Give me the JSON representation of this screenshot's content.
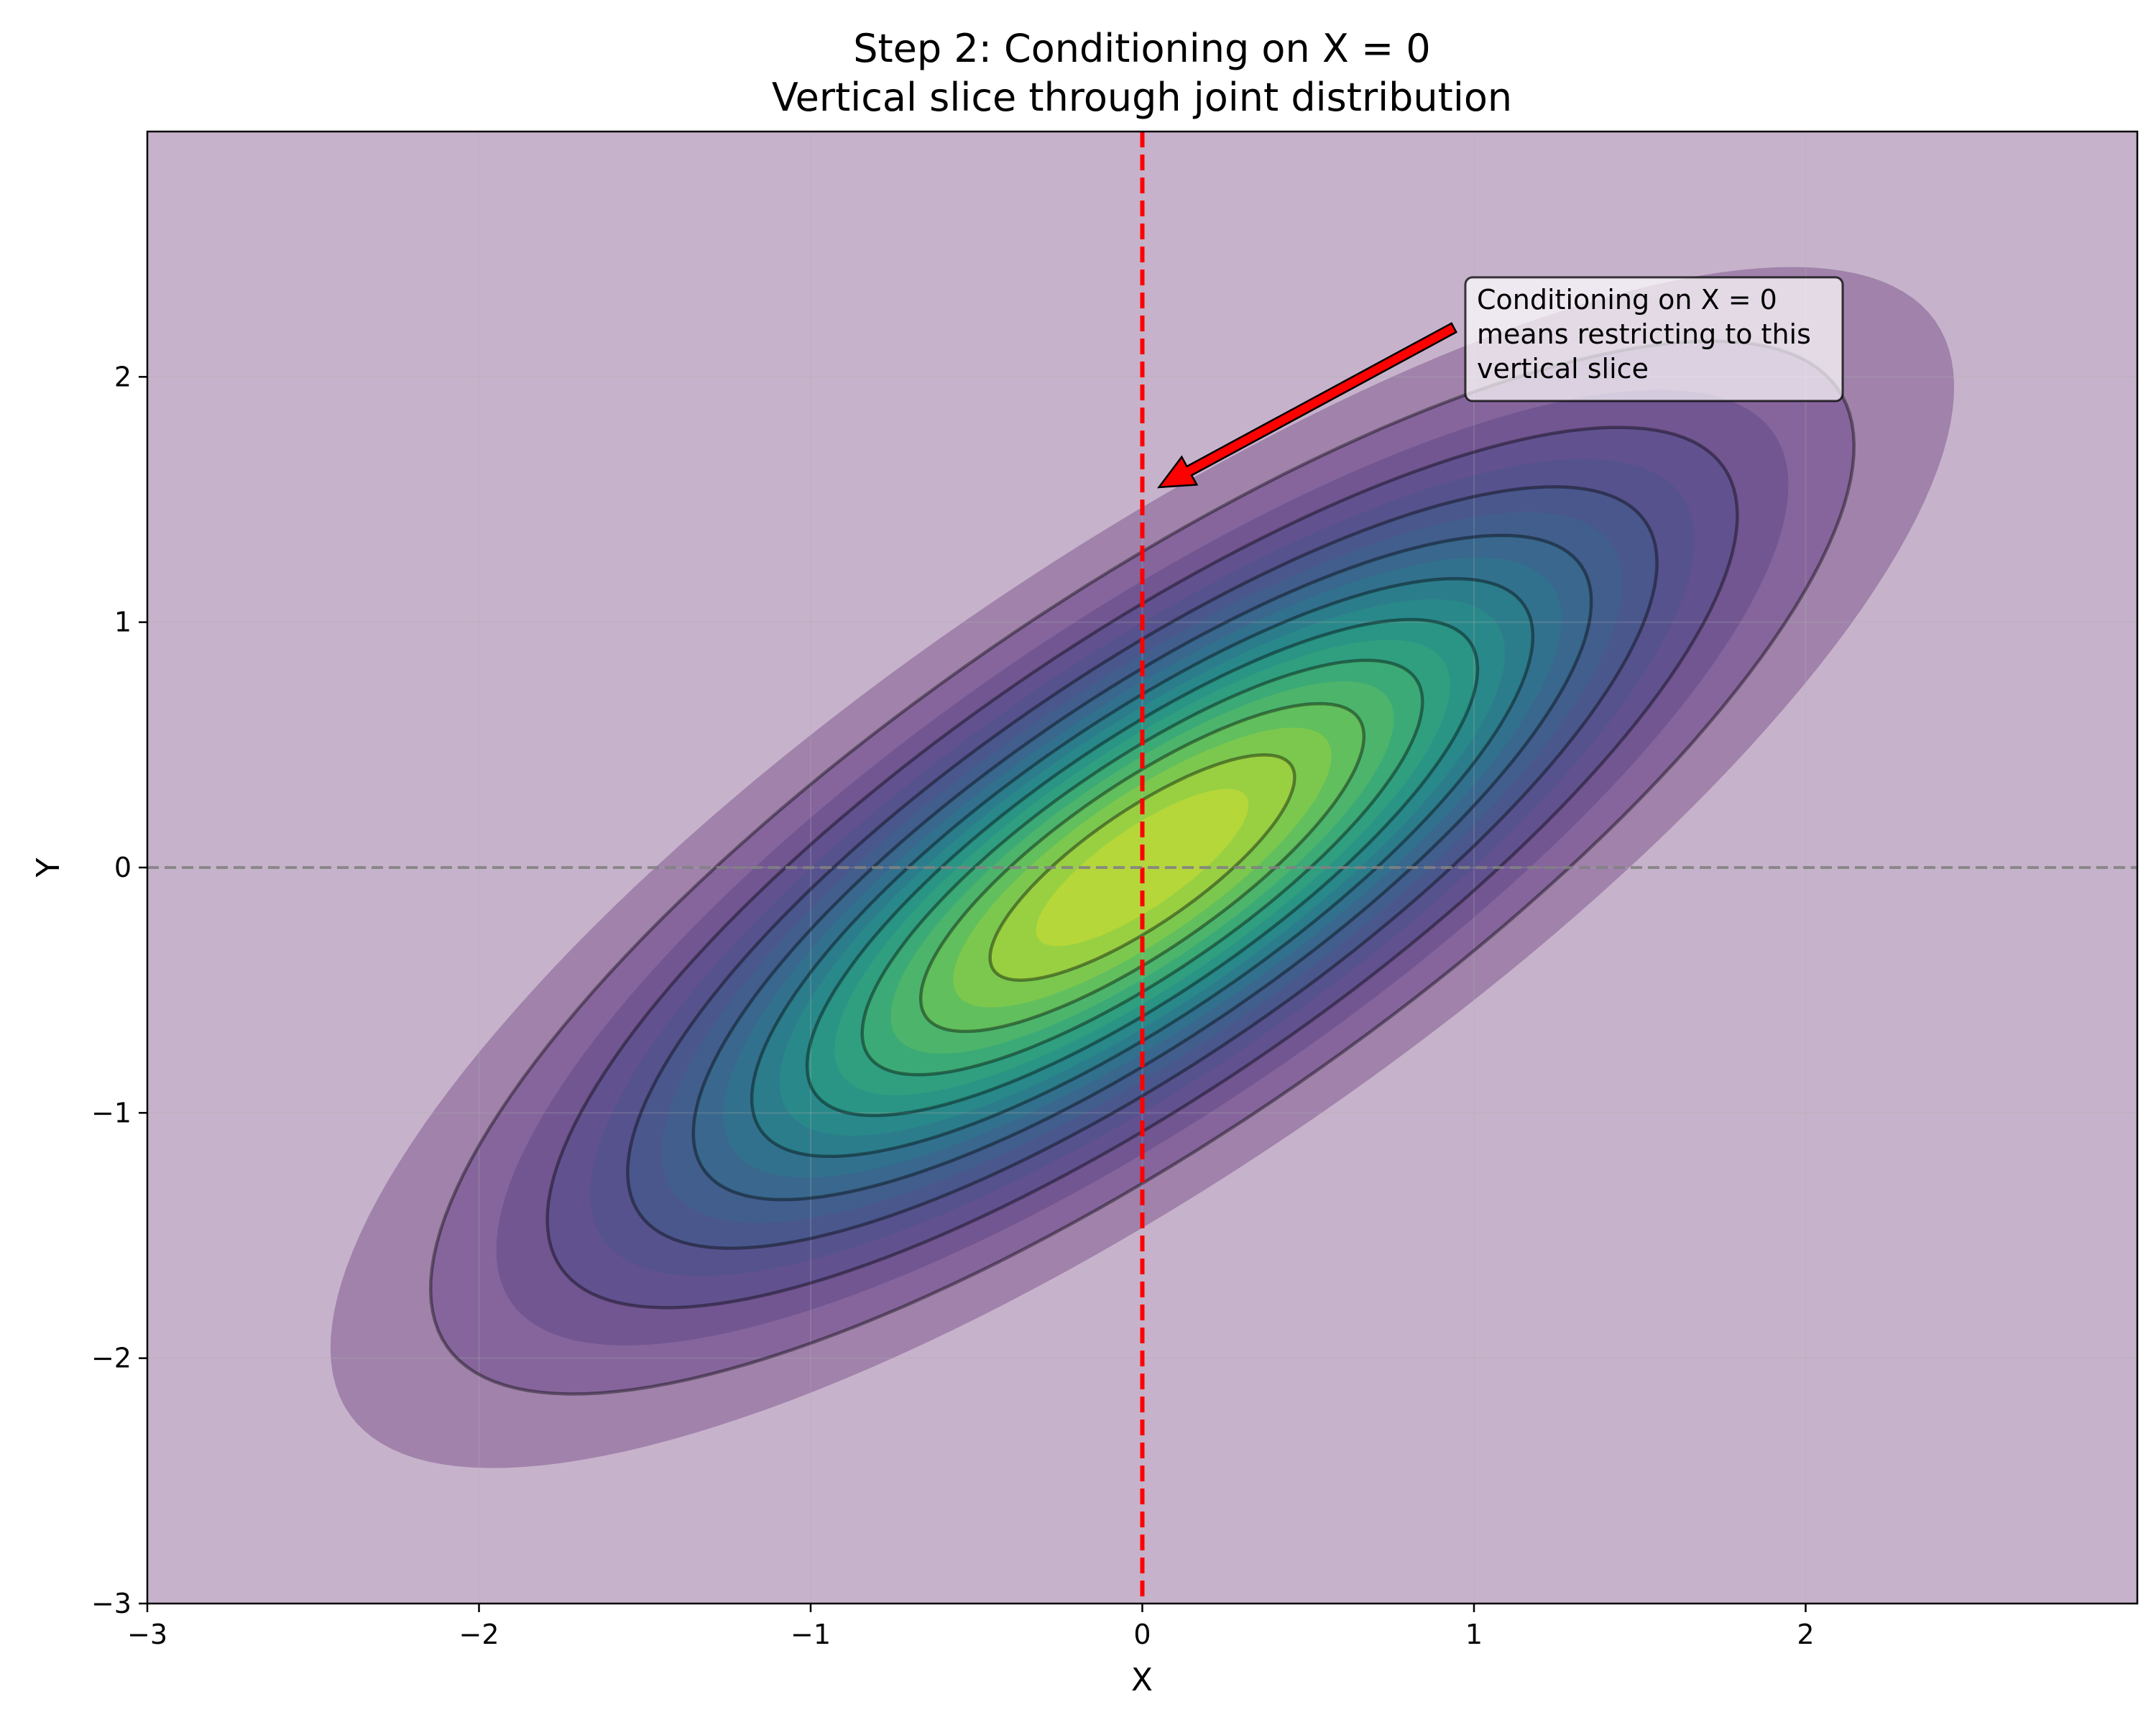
{
  "chart_data": {
    "type": "contour",
    "title": "Step 2: Conditioning on X = 0",
    "subtitle": "Vertical slice through joint distribution",
    "xlabel": "X",
    "ylabel": "Y",
    "xlim": [
      -3,
      3
    ],
    "ylim": [
      -3,
      3
    ],
    "xticks": [
      -3,
      -2,
      -1,
      0,
      1,
      2
    ],
    "yticks": [
      -3,
      -2,
      -1,
      0,
      1,
      2
    ],
    "xtick_labels": [
      "−3",
      "−2",
      "−1",
      "0",
      "1",
      "2"
    ],
    "ytick_labels": [
      "−3",
      "−2",
      "−1",
      "0",
      "1",
      "2"
    ],
    "grid": true,
    "distribution": {
      "name": "bivariate normal",
      "mean": [
        0,
        0
      ],
      "std_x": 1,
      "std_y": 1,
      "correlation": 0.8
    },
    "filled_contour_levels": 20,
    "line_contour_levels": 10,
    "colormap": "viridis",
    "fill_alpha": 0.3,
    "reference_lines": [
      {
        "orientation": "vertical",
        "value": 0,
        "style": "dashed",
        "color": "#ff0000"
      },
      {
        "orientation": "horizontal",
        "value": 0,
        "style": "dashed",
        "color": "#808080"
      }
    ],
    "annotation": {
      "lines": [
        "Conditioning on X = 0",
        "means restricting to this",
        "vertical slice"
      ],
      "arrow_tip": [
        0.05,
        1.55
      ],
      "text_anchor": [
        1.0,
        2.3
      ],
      "arrow_color": "#ff0000"
    }
  }
}
